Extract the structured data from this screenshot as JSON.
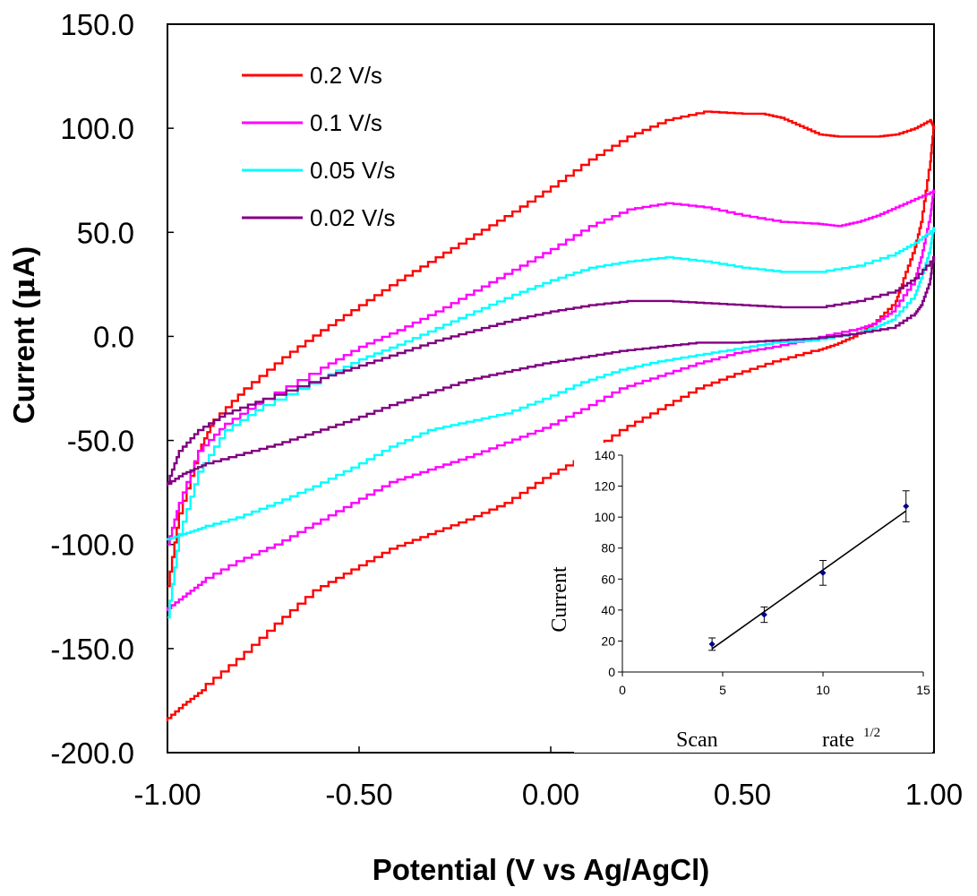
{
  "chart_data": [
    {
      "type": "line",
      "name": "cyclic-voltammogram",
      "xlabel": "Potential (V vs Ag/AgCl)",
      "ylabel_prefix": "Current (",
      "ylabel_mu": "μ",
      "ylabel_suffix": "A)",
      "xlim": [
        -1.0,
        1.0
      ],
      "ylim": [
        -200.0,
        150.0
      ],
      "xticks": [
        -1.0,
        -0.5,
        0.0,
        0.5,
        1.0
      ],
      "xtick_labels": [
        "-1.00",
        "-0.50",
        "0.00",
        "0.50",
        "1.00"
      ],
      "yticks": [
        150,
        100,
        50,
        0,
        -50,
        -100,
        -150,
        -200
      ],
      "ytick_labels": [
        "150.0",
        "100.0",
        "50.0",
        "0.0",
        "-50.0",
        "-100.0",
        "-150.0",
        "-200.0"
      ],
      "legend_position": "top-left",
      "series": [
        {
          "name": "0.2 V/s",
          "color": "#ff0000",
          "x": [
            -1.0,
            -0.97,
            -0.92,
            -0.88,
            -0.8,
            -0.7,
            -0.6,
            -0.5,
            -0.4,
            -0.3,
            -0.2,
            -0.1,
            0.0,
            0.1,
            0.2,
            0.3,
            0.4,
            0.5,
            0.55,
            0.6,
            0.65,
            0.7,
            0.75,
            0.8,
            0.85,
            0.9,
            0.95,
            0.99,
            1.0,
            0.99,
            0.97,
            0.95,
            0.92,
            0.9,
            0.85,
            0.8,
            0.75,
            0.7,
            0.6,
            0.5,
            0.4,
            0.3,
            0.2,
            0.1,
            0.0,
            -0.1,
            -0.2,
            -0.3,
            -0.4,
            -0.5,
            -0.6,
            -0.7,
            -0.8,
            -0.9,
            -0.95,
            -1.0
          ],
          "y": [
            -120,
            -85,
            -55,
            -40,
            -25,
            -10,
            3,
            15,
            27,
            38,
            49,
            60,
            72,
            85,
            96,
            104,
            108,
            107,
            107,
            105,
            101,
            97,
            96,
            96,
            96,
            97,
            100,
            104,
            100,
            80,
            55,
            40,
            25,
            15,
            6,
            0,
            -4,
            -7,
            -12,
            -18,
            -25,
            -35,
            -45,
            -58,
            -68,
            -80,
            -88,
            -95,
            -102,
            -112,
            -122,
            -138,
            -155,
            -170,
            -177,
            -185
          ]
        },
        {
          "name": "0.1 V/s",
          "color": "#ff00ff",
          "x": [
            -1.0,
            -0.97,
            -0.92,
            -0.85,
            -0.75,
            -0.6,
            -0.5,
            -0.4,
            -0.3,
            -0.2,
            -0.1,
            0.0,
            0.1,
            0.2,
            0.3,
            0.4,
            0.5,
            0.6,
            0.7,
            0.75,
            0.8,
            0.85,
            0.9,
            0.95,
            1.0,
            0.99,
            0.97,
            0.95,
            0.9,
            0.85,
            0.8,
            0.7,
            0.6,
            0.5,
            0.4,
            0.3,
            0.2,
            0.1,
            0.0,
            -0.1,
            -0.2,
            -0.3,
            -0.4,
            -0.5,
            -0.6,
            -0.7,
            -0.8,
            -0.9,
            -0.95,
            -1.0
          ],
          "y": [
            -100,
            -80,
            -55,
            -42,
            -30,
            -15,
            -5,
            3,
            12,
            22,
            32,
            42,
            53,
            61,
            64,
            62,
            58,
            55,
            54,
            53,
            55,
            58,
            62,
            66,
            70,
            55,
            38,
            25,
            12,
            6,
            3,
            -1,
            -5,
            -8,
            -13,
            -19,
            -25,
            -35,
            -44,
            -51,
            -58,
            -64,
            -70,
            -80,
            -90,
            -100,
            -108,
            -118,
            -125,
            -132
          ]
        },
        {
          "name": "0.05 V/s",
          "color": "#00ffff",
          "x": [
            -1.0,
            -0.97,
            -0.92,
            -0.85,
            -0.75,
            -0.6,
            -0.5,
            -0.4,
            -0.3,
            -0.2,
            -0.1,
            0.0,
            0.1,
            0.2,
            0.3,
            0.4,
            0.5,
            0.6,
            0.7,
            0.8,
            0.9,
            0.95,
            1.0,
            0.99,
            0.97,
            0.95,
            0.9,
            0.85,
            0.8,
            0.7,
            0.6,
            0.5,
            0.4,
            0.3,
            0.2,
            0.1,
            0.0,
            -0.1,
            -0.2,
            -0.3,
            -0.4,
            -0.5,
            -0.6,
            -0.7,
            -0.8,
            -0.9,
            -0.95,
            -1.0
          ],
          "y": [
            -135,
            -95,
            -65,
            -45,
            -33,
            -20,
            -11,
            -4,
            4,
            12,
            20,
            27,
            33,
            36,
            38,
            36,
            33,
            31,
            31,
            34,
            40,
            45,
            52,
            40,
            28,
            18,
            8,
            4,
            1,
            -2,
            -3,
            -6,
            -9,
            -12,
            -16,
            -22,
            -30,
            -37,
            -41,
            -45,
            -53,
            -63,
            -72,
            -80,
            -87,
            -92,
            -95,
            -98
          ]
        },
        {
          "name": "0.02 V/s",
          "color": "#800080",
          "x": [
            -1.0,
            -0.97,
            -0.92,
            -0.85,
            -0.75,
            -0.6,
            -0.5,
            -0.4,
            -0.3,
            -0.2,
            -0.1,
            0.0,
            0.1,
            0.2,
            0.3,
            0.4,
            0.5,
            0.6,
            0.7,
            0.8,
            0.9,
            0.95,
            1.0,
            0.99,
            0.97,
            0.95,
            0.9,
            0.8,
            0.7,
            0.6,
            0.5,
            0.4,
            0.3,
            0.2,
            0.1,
            0.0,
            -0.1,
            -0.2,
            -0.3,
            -0.4,
            -0.5,
            -0.6,
            -0.7,
            -0.8,
            -0.9,
            -0.95,
            -1.0
          ],
          "y": [
            -70,
            -55,
            -45,
            -37,
            -30,
            -20,
            -14,
            -8,
            -2,
            3,
            8,
            12,
            15,
            17,
            17,
            16,
            15,
            14,
            14,
            17,
            22,
            28,
            38,
            25,
            15,
            10,
            4,
            1,
            -1,
            -2,
            -3,
            -3,
            -5,
            -7,
            -10,
            -13,
            -17,
            -21,
            -27,
            -33,
            -40,
            -46,
            -52,
            -57,
            -62,
            -66,
            -72
          ]
        }
      ]
    },
    {
      "type": "scatter",
      "name": "inset-scan-rate",
      "xlabel_left": "Scan",
      "xlabel_right": "rate",
      "xlabel_sup": "1/2",
      "ylabel": "Current",
      "xlim": [
        0,
        15
      ],
      "ylim": [
        0,
        140
      ],
      "xticks": [
        0,
        5,
        10,
        15
      ],
      "yticks": [
        0,
        20,
        40,
        60,
        80,
        100,
        120,
        140
      ],
      "marker_color": "#00008b",
      "x": [
        4.47,
        7.07,
        10.0,
        14.14
      ],
      "y": [
        18,
        37,
        64,
        107
      ],
      "error": [
        4,
        5,
        8,
        10
      ],
      "fit_line": {
        "x": [
          4.47,
          14.14
        ],
        "y": [
          15,
          104
        ]
      }
    }
  ]
}
